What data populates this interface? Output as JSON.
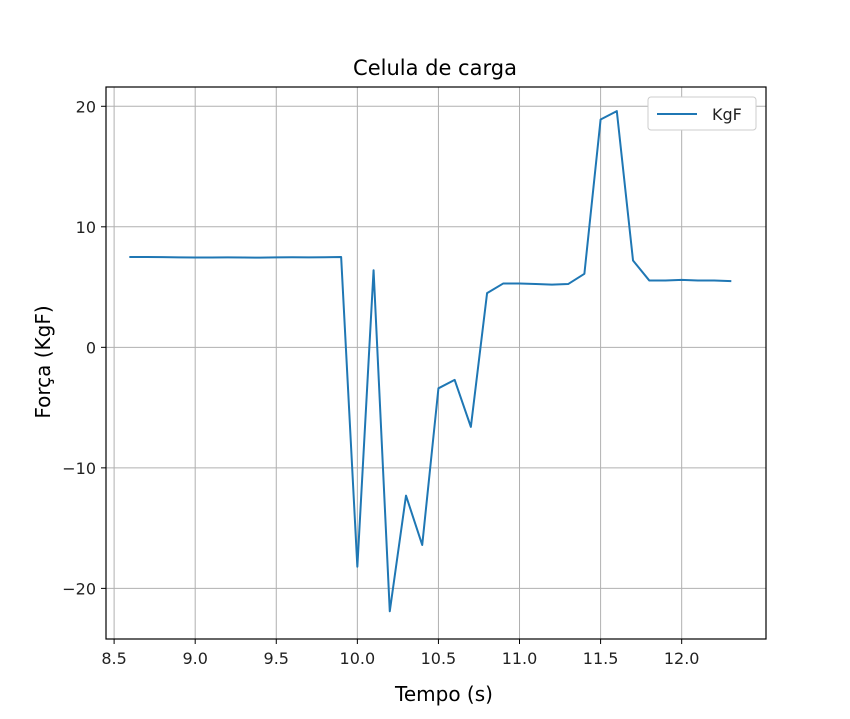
{
  "chart_data": {
    "type": "line",
    "title": "Celula de carga",
    "xlabel": "Tempo (s)",
    "ylabel": "Força (KgF)",
    "xlim": [
      8.45,
      12.52
    ],
    "ylim": [
      -24.2,
      21.6
    ],
    "xticks": [
      8.5,
      9.0,
      9.5,
      10.0,
      10.5,
      11.0,
      11.5,
      12.0
    ],
    "xtick_labels": [
      "8.5",
      "9.0",
      "9.5",
      "10.0",
      "10.5",
      "11.0",
      "11.5",
      "12.0"
    ],
    "yticks": [
      -20,
      -10,
      0,
      10,
      20
    ],
    "ytick_labels": [
      "−20",
      "−10",
      "0",
      "10",
      "20"
    ],
    "grid": true,
    "legend_position": "upper right",
    "series": [
      {
        "name": "KgF",
        "color": "#1f77b4",
        "x": [
          8.6,
          8.7,
          8.8,
          8.9,
          9.0,
          9.1,
          9.2,
          9.3,
          9.4,
          9.5,
          9.6,
          9.7,
          9.8,
          9.9,
          10.0,
          10.1,
          10.2,
          10.3,
          10.4,
          10.5,
          10.6,
          10.7,
          10.8,
          10.9,
          11.0,
          11.1,
          11.2,
          11.3,
          11.4,
          11.5,
          11.6,
          11.7,
          11.8,
          11.9,
          12.0,
          12.1,
          12.2,
          12.3
        ],
        "y": [
          7.5,
          7.5,
          7.48,
          7.46,
          7.45,
          7.45,
          7.46,
          7.45,
          7.44,
          7.46,
          7.47,
          7.46,
          7.47,
          7.5,
          -18.2,
          6.4,
          -21.9,
          -12.3,
          -16.4,
          -3.4,
          -2.7,
          -6.6,
          4.5,
          5.3,
          5.3,
          5.25,
          5.2,
          5.25,
          6.1,
          18.9,
          19.6,
          7.2,
          5.55,
          5.55,
          5.6,
          5.55,
          5.55,
          5.5
        ]
      }
    ]
  }
}
